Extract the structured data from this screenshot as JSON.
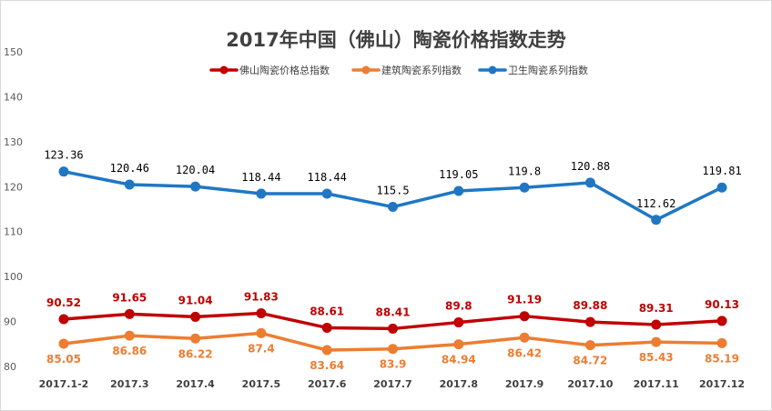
{
  "chart_data": {
    "type": "line",
    "title": "2017年中国（佛山）陶瓷价格指数走势",
    "xlabel": "",
    "ylabel": "",
    "categories": [
      "2017.1-2",
      "2017.3",
      "2017.4",
      "2017.5",
      "2017.6",
      "2017.7",
      "2017.8",
      "2017.9",
      "2017.10",
      "2017.11",
      "2017.12"
    ],
    "ylim": [
      80,
      150
    ],
    "yticks": [
      80,
      90,
      100,
      110,
      120,
      130,
      140,
      150
    ],
    "grid": false,
    "legend_position": "top",
    "series": [
      {
        "name": "佛山陶瓷价格总指数",
        "color": "#c00000",
        "label_color": "#c00000",
        "label_position": "above",
        "values": [
          90.52,
          91.65,
          91.04,
          91.83,
          88.61,
          88.41,
          89.8,
          91.19,
          89.88,
          89.31,
          90.13
        ],
        "labels": [
          "90.52",
          "91.65",
          "91.04",
          "91.83",
          "88.61",
          "88.41",
          "89.8",
          "91.19",
          "89.88",
          "89.31",
          "90.13"
        ]
      },
      {
        "name": "建筑陶瓷系列指数",
        "color": "#ed7d31",
        "label_color": "#ed7d31",
        "label_position": "below",
        "values": [
          85.05,
          86.86,
          86.22,
          87.4,
          83.64,
          83.9,
          84.94,
          86.42,
          84.72,
          85.43,
          85.19
        ],
        "labels": [
          "85.05",
          "86.86",
          "86.22",
          "87.4",
          "83.64",
          "83.9",
          "84.94",
          "86.42",
          "84.72",
          "85.43",
          "85.19"
        ]
      },
      {
        "name": "卫生陶瓷系列指数",
        "color": "#1f77c4",
        "label_color": "#000000",
        "label_position": "above",
        "values": [
          123.36,
          120.46,
          120.04,
          118.44,
          118.44,
          115.5,
          119.05,
          119.8,
          120.88,
          112.62,
          119.81
        ],
        "labels": [
          "123.36",
          "120.46",
          "120.04",
          "118.44",
          "118.44",
          "115.5",
          "119.05",
          "119.8",
          "120.88",
          "112.62",
          "119.81"
        ]
      }
    ]
  }
}
